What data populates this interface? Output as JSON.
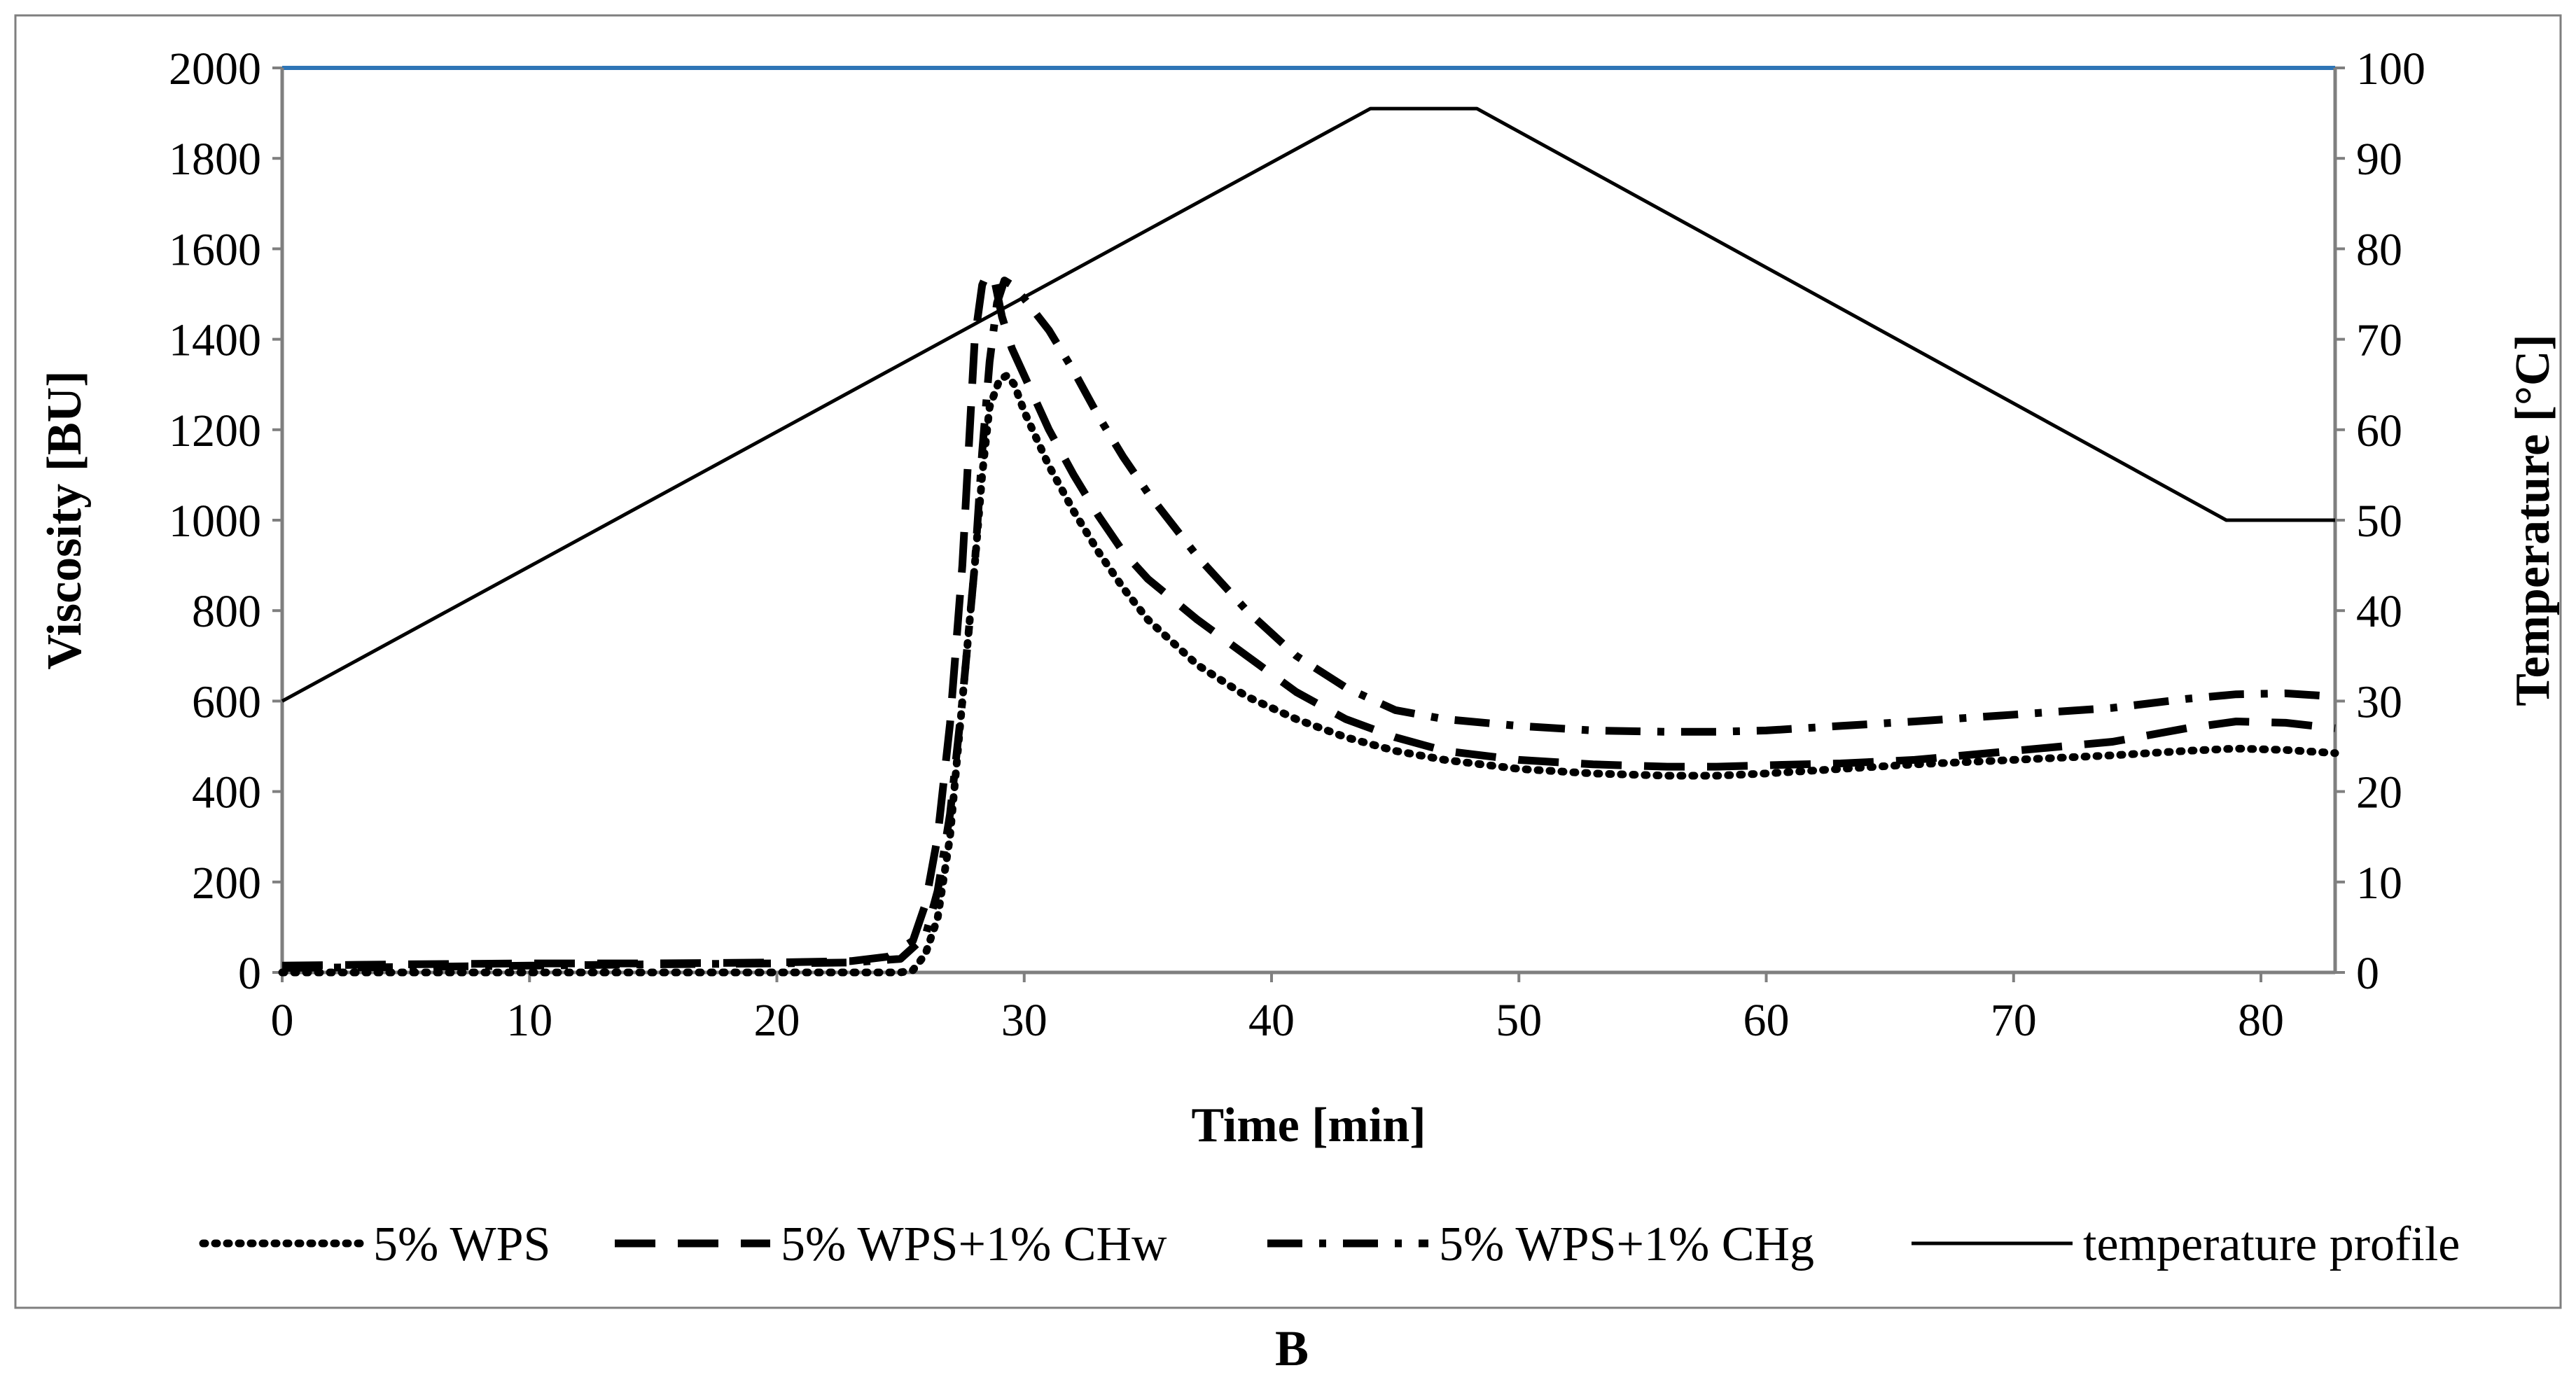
{
  "chart_data": {
    "type": "line",
    "title": "",
    "caption": "B",
    "xlabel": "Time [min]",
    "ylabel": "Viscosity [BU]",
    "y2label": "Temperature [°C]",
    "xlim": [
      0,
      83
    ],
    "ylim": [
      0,
      2000
    ],
    "y2lim": [
      0,
      100
    ],
    "xticks": [
      "0",
      "10",
      "20",
      "30",
      "40",
      "50",
      "60",
      "70",
      "80"
    ],
    "yticks": [
      "0",
      "200",
      "400",
      "600",
      "800",
      "1000",
      "1200",
      "1400",
      "1600",
      "1800",
      "2000"
    ],
    "y2ticks": [
      "0",
      "10",
      "20",
      "30",
      "40",
      "50",
      "60",
      "70",
      "80",
      "90",
      "100"
    ],
    "grid": false,
    "legend_position": "bottom",
    "colors": {
      "frame": "#7f7f7f",
      "top_border": "#2e75b6",
      "series": "#000000"
    },
    "series": [
      {
        "name": "5% WPS",
        "style": "dotted",
        "axis": "left",
        "points": [
          [
            0,
            0
          ],
          [
            5,
            0
          ],
          [
            10,
            0
          ],
          [
            15,
            0
          ],
          [
            20,
            0
          ],
          [
            23,
            0
          ],
          [
            25,
            0
          ],
          [
            25.5,
            5
          ],
          [
            26,
            40
          ],
          [
            26.5,
            120
          ],
          [
            27,
            300
          ],
          [
            27.5,
            600
          ],
          [
            28,
            900
          ],
          [
            28.3,
            1100
          ],
          [
            28.6,
            1250
          ],
          [
            29,
            1310
          ],
          [
            29.3,
            1320
          ],
          [
            29.6,
            1300
          ],
          [
            30,
            1240
          ],
          [
            31,
            1120
          ],
          [
            32,
            1020
          ],
          [
            33,
            930
          ],
          [
            34,
            850
          ],
          [
            35,
            780
          ],
          [
            37,
            680
          ],
          [
            39,
            610
          ],
          [
            41,
            560
          ],
          [
            43,
            520
          ],
          [
            45,
            490
          ],
          [
            47,
            470
          ],
          [
            50,
            450
          ],
          [
            53,
            440
          ],
          [
            56,
            435
          ],
          [
            58,
            435
          ],
          [
            60,
            440
          ],
          [
            63,
            450
          ],
          [
            66,
            460
          ],
          [
            70,
            470
          ],
          [
            74,
            480
          ],
          [
            77,
            490
          ],
          [
            79,
            495
          ],
          [
            81,
            492
          ],
          [
            83,
            485
          ]
        ]
      },
      {
        "name": "5% WPS+1% CHw",
        "style": "dashed",
        "axis": "left",
        "points": [
          [
            0,
            15
          ],
          [
            5,
            18
          ],
          [
            10,
            20
          ],
          [
            15,
            20
          ],
          [
            20,
            22
          ],
          [
            23,
            25
          ],
          [
            24.5,
            35
          ],
          [
            25.5,
            70
          ],
          [
            26,
            150
          ],
          [
            26.5,
            300
          ],
          [
            27,
            550
          ],
          [
            27.5,
            900
          ],
          [
            27.8,
            1200
          ],
          [
            28,
            1400
          ],
          [
            28.3,
            1520
          ],
          [
            28.5,
            1545
          ],
          [
            28.8,
            1530
          ],
          [
            29.1,
            1450
          ],
          [
            29.5,
            1380
          ],
          [
            30,
            1320
          ],
          [
            31,
            1200
          ],
          [
            32,
            1100
          ],
          [
            33,
            1010
          ],
          [
            34,
            930
          ],
          [
            35,
            870
          ],
          [
            37,
            780
          ],
          [
            39,
            700
          ],
          [
            41,
            620
          ],
          [
            43,
            560
          ],
          [
            45,
            520
          ],
          [
            47,
            490
          ],
          [
            50,
            470
          ],
          [
            53,
            460
          ],
          [
            56,
            455
          ],
          [
            58,
            455
          ],
          [
            60,
            458
          ],
          [
            63,
            462
          ],
          [
            66,
            470
          ],
          [
            70,
            490
          ],
          [
            74,
            510
          ],
          [
            77,
            540
          ],
          [
            79,
            555
          ],
          [
            81,
            552
          ],
          [
            83,
            540
          ]
        ]
      },
      {
        "name": "5% WPS+1% CHg",
        "style": "dashdot",
        "axis": "left",
        "points": [
          [
            0,
            10
          ],
          [
            5,
            12
          ],
          [
            10,
            15
          ],
          [
            15,
            18
          ],
          [
            20,
            20
          ],
          [
            23,
            22
          ],
          [
            25,
            30
          ],
          [
            26,
            80
          ],
          [
            26.5,
            180
          ],
          [
            27,
            350
          ],
          [
            27.5,
            600
          ],
          [
            28,
            900
          ],
          [
            28.3,
            1150
          ],
          [
            28.6,
            1350
          ],
          [
            28.9,
            1480
          ],
          [
            29.2,
            1530
          ],
          [
            29.5,
            1520
          ],
          [
            30,
            1490
          ],
          [
            31,
            1420
          ],
          [
            32,
            1330
          ],
          [
            33,
            1230
          ],
          [
            34,
            1140
          ],
          [
            35,
            1060
          ],
          [
            37,
            920
          ],
          [
            39,
            800
          ],
          [
            41,
            700
          ],
          [
            43,
            630
          ],
          [
            45,
            580
          ],
          [
            47,
            560
          ],
          [
            50,
            545
          ],
          [
            53,
            535
          ],
          [
            56,
            532
          ],
          [
            58,
            532
          ],
          [
            60,
            535
          ],
          [
            63,
            545
          ],
          [
            66,
            555
          ],
          [
            70,
            570
          ],
          [
            74,
            585
          ],
          [
            77,
            605
          ],
          [
            79,
            615
          ],
          [
            81,
            617
          ],
          [
            83,
            610
          ]
        ]
      },
      {
        "name": "temperature profile",
        "style": "solid",
        "axis": "right",
        "points": [
          [
            0,
            30
          ],
          [
            44,
            95.5
          ],
          [
            48.3,
            95.5
          ],
          [
            78.6,
            50
          ],
          [
            83,
            50
          ]
        ]
      }
    ]
  }
}
